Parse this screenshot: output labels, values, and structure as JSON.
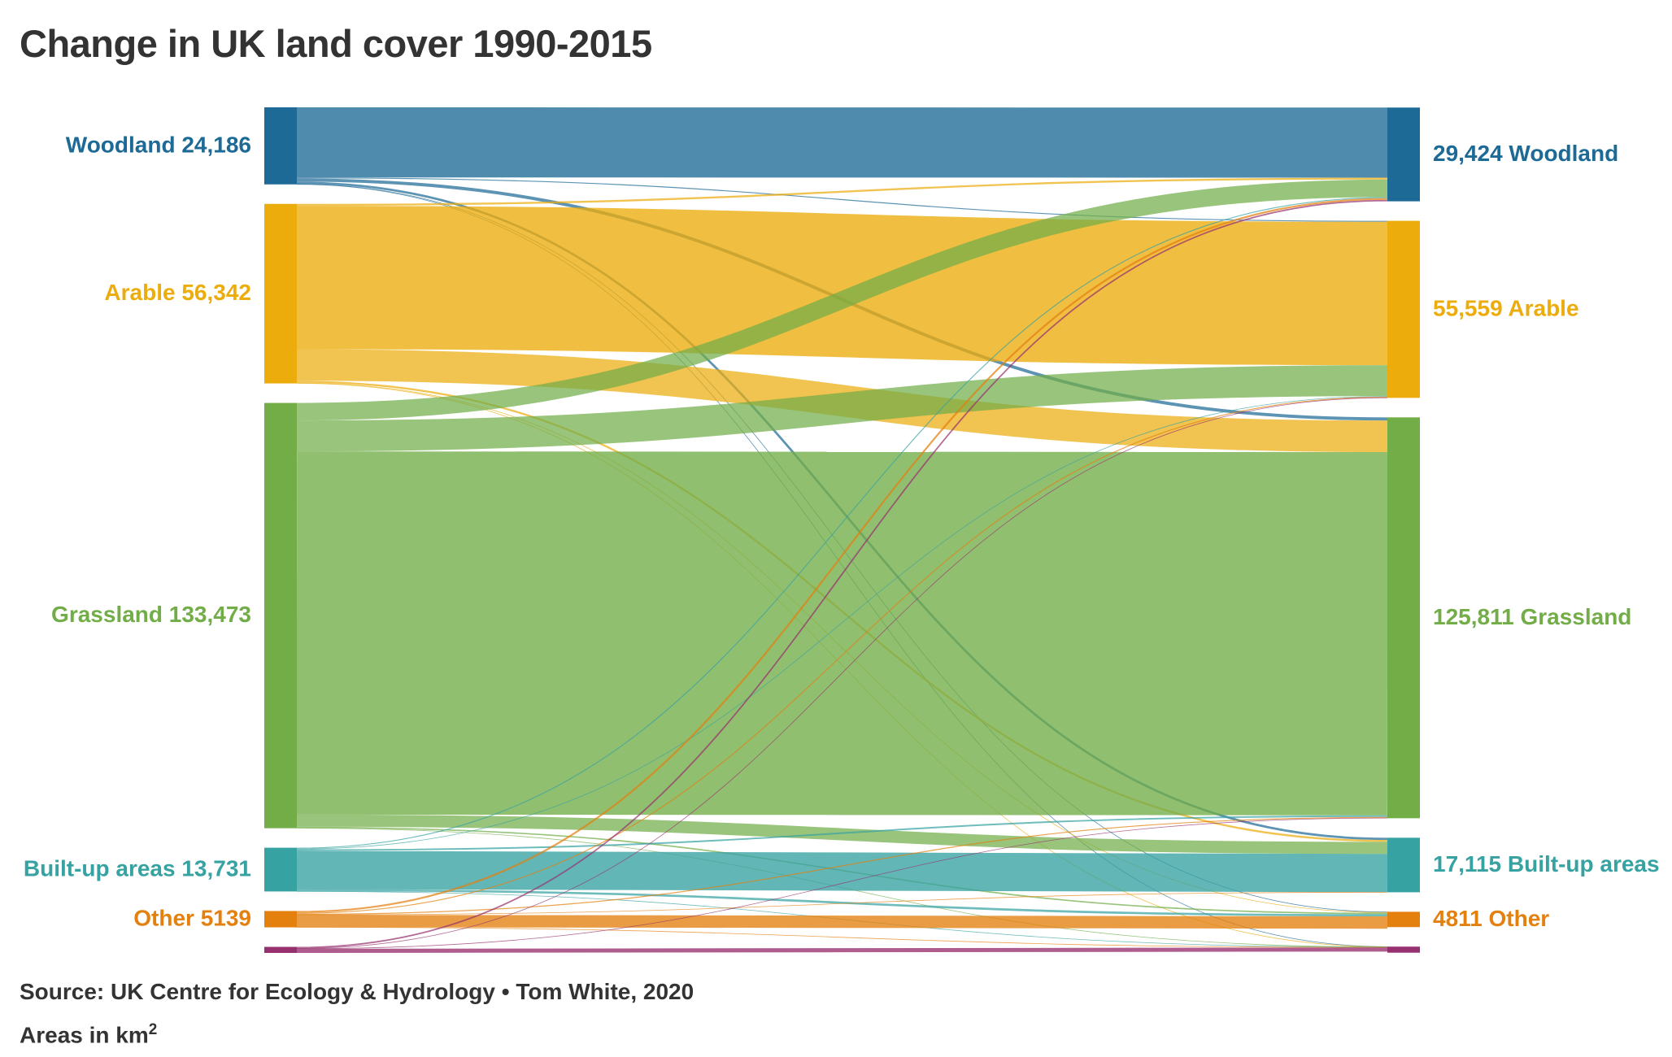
{
  "title": "Change in UK land cover 1990-2015",
  "source": "Source: UK Centre for Ecology & Hydrology • Tom White, 2020",
  "units_prefix": "Areas in km",
  "units_superscript": "2",
  "colors": {
    "woodland": "#1e6a96",
    "arable": "#ecac0c",
    "grassland": "#72ad48",
    "builtup": "#37a2a2",
    "other": "#e3800e",
    "sixth": "#97306e"
  },
  "chart_data": {
    "type": "sankey",
    "title": "Change in UK land cover 1990-2015",
    "left_year": "1990",
    "right_year": "2015",
    "units": "km²",
    "left_nodes": [
      {
        "id": "woodland",
        "name": "Woodland",
        "value_label": "24,186",
        "value": 24186
      },
      {
        "id": "arable",
        "name": "Arable",
        "value_label": "56,342",
        "value": 56342
      },
      {
        "id": "grassland",
        "name": "Grassland",
        "value_label": "133,473",
        "value": 133473
      },
      {
        "id": "builtup",
        "name": "Built-up areas",
        "value_label": "13,731",
        "value": 13731
      },
      {
        "id": "other",
        "name": "Other",
        "value_label": "5139",
        "value": 5139
      },
      {
        "id": "sixth",
        "name": "",
        "value_label": "",
        "value": 1900
      }
    ],
    "right_nodes": [
      {
        "id": "woodland",
        "name": "Woodland",
        "value_label": "29,424",
        "value": 29424
      },
      {
        "id": "arable",
        "name": "Arable",
        "value_label": "55,559",
        "value": 55559
      },
      {
        "id": "grassland",
        "name": "Grassland",
        "value_label": "125,811",
        "value": 125811
      },
      {
        "id": "builtup",
        "name": "Built-up areas",
        "value_label": "17,115",
        "value": 17115
      },
      {
        "id": "other",
        "name": "Other",
        "value_label": "4811",
        "value": 4811
      },
      {
        "id": "sixth",
        "name": "",
        "value_label": "",
        "value": 1900
      }
    ],
    "flows": [
      {
        "source": "woodland",
        "target": "woodland",
        "value": 22000
      },
      {
        "source": "woodland",
        "target": "arable",
        "value": 300
      },
      {
        "source": "woodland",
        "target": "grassland",
        "value": 1000
      },
      {
        "source": "woodland",
        "target": "builtup",
        "value": 700
      },
      {
        "source": "woodland",
        "target": "other",
        "value": 136
      },
      {
        "source": "woodland",
        "target": "sixth",
        "value": 50
      },
      {
        "source": "arable",
        "target": "woodland",
        "value": 600
      },
      {
        "source": "arable",
        "target": "arable",
        "value": 45000
      },
      {
        "source": "arable",
        "target": "grassland",
        "value": 9900
      },
      {
        "source": "arable",
        "target": "builtup",
        "value": 600
      },
      {
        "source": "arable",
        "target": "other",
        "value": 192
      },
      {
        "source": "arable",
        "target": "sixth",
        "value": 50
      },
      {
        "source": "grassland",
        "target": "woodland",
        "value": 5500
      },
      {
        "source": "grassland",
        "target": "arable",
        "value": 9700
      },
      {
        "source": "grassland",
        "target": "grassland",
        "value": 114000
      },
      {
        "source": "grassland",
        "target": "builtup",
        "value": 3800
      },
      {
        "source": "grassland",
        "target": "other",
        "value": 423
      },
      {
        "source": "grassland",
        "target": "sixth",
        "value": 50
      },
      {
        "source": "builtup",
        "target": "woodland",
        "value": 300
      },
      {
        "source": "builtup",
        "target": "arable",
        "value": 200
      },
      {
        "source": "builtup",
        "target": "grassland",
        "value": 500
      },
      {
        "source": "builtup",
        "target": "builtup",
        "value": 12000
      },
      {
        "source": "builtup",
        "target": "other",
        "value": 681
      },
      {
        "source": "builtup",
        "target": "sixth",
        "value": 50
      },
      {
        "source": "other",
        "target": "woodland",
        "value": 574
      },
      {
        "source": "other",
        "target": "arable",
        "value": 300
      },
      {
        "source": "other",
        "target": "grassland",
        "value": 311
      },
      {
        "source": "other",
        "target": "builtup",
        "value": 15
      },
      {
        "source": "other",
        "target": "other",
        "value": 3879
      },
      {
        "source": "other",
        "target": "sixth",
        "value": 60
      },
      {
        "source": "sixth",
        "target": "woodland",
        "value": 450
      },
      {
        "source": "sixth",
        "target": "arable",
        "value": 59
      },
      {
        "source": "sixth",
        "target": "grassland",
        "value": 100
      },
      {
        "source": "sixth",
        "target": "builtup",
        "value": 0
      },
      {
        "source": "sixth",
        "target": "other",
        "value": 0
      },
      {
        "source": "sixth",
        "target": "sixth",
        "value": 1291
      }
    ]
  }
}
